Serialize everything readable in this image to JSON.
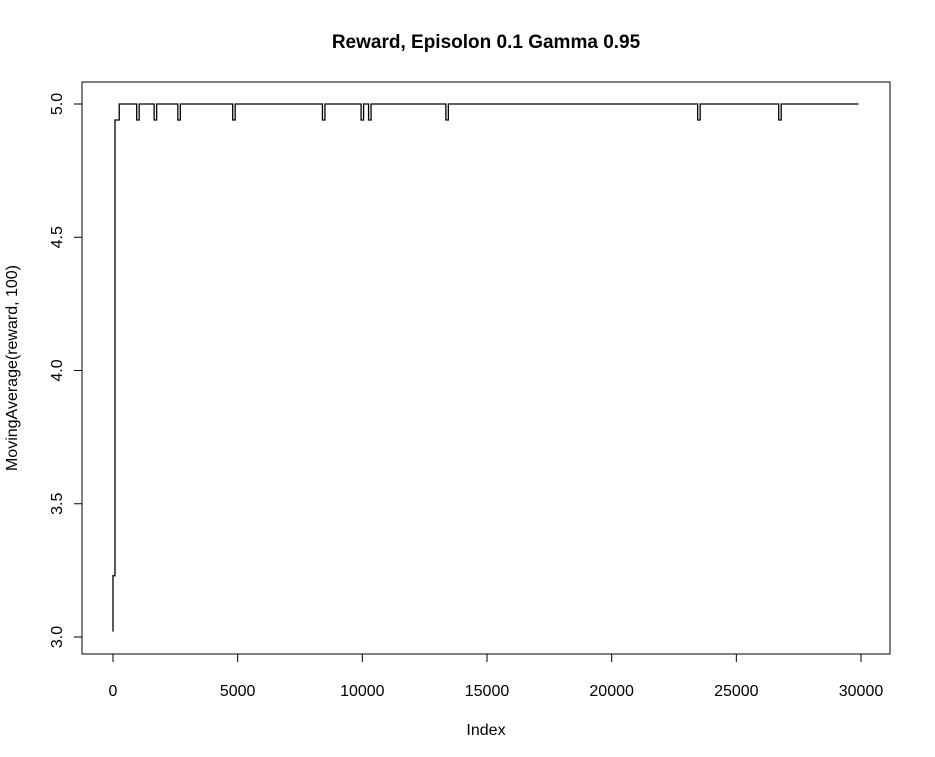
{
  "chart_data": {
    "type": "line",
    "title": "Reward, Episolon  0.1  Gamma  0.95",
    "xlabel": "Index",
    "ylabel": "MovingAverage(reward, 100)",
    "xlim": [
      0,
      30000
    ],
    "ylim": [
      3.0,
      5.0
    ],
    "x_ticks": [
      0,
      5000,
      10000,
      15000,
      20000,
      25000,
      30000
    ],
    "x_tick_labels": [
      "0",
      "5000",
      "10000",
      "15000",
      "20000",
      "25000",
      "30000"
    ],
    "y_ticks": [
      3.0,
      3.5,
      4.0,
      4.5,
      5.0
    ],
    "y_tick_labels": [
      "3.0",
      "3.5",
      "4.0",
      "4.5",
      "5.0"
    ],
    "grid": false,
    "series": [
      {
        "x": [
          0,
          0,
          80,
          80,
          250,
          250,
          950,
          950,
          1050,
          1050,
          1650,
          1650,
          1750,
          1750,
          2600,
          2600,
          2700,
          2700,
          4800,
          4800,
          4900,
          4900,
          8400,
          8400,
          8500,
          8500,
          9950,
          9950,
          10050,
          10050,
          10250,
          10250,
          10350,
          10350,
          13350,
          13350,
          13450,
          13450,
          23450,
          23450,
          23550,
          23550,
          26700,
          26700,
          26800,
          26800,
          29900
        ],
        "y": [
          3.02,
          3.23,
          3.23,
          4.94,
          4.94,
          5.0,
          5.0,
          4.94,
          4.94,
          5.0,
          5.0,
          4.94,
          4.94,
          5.0,
          5.0,
          4.94,
          4.94,
          5.0,
          5.0,
          4.94,
          4.94,
          5.0,
          5.0,
          4.94,
          4.94,
          5.0,
          5.0,
          4.94,
          4.94,
          5.0,
          5.0,
          4.94,
          4.94,
          5.0,
          5.0,
          4.94,
          4.94,
          5.0,
          5.0,
          4.94,
          4.94,
          5.0,
          5.0,
          4.94,
          4.94,
          5.0,
          5.0
        ]
      }
    ]
  }
}
